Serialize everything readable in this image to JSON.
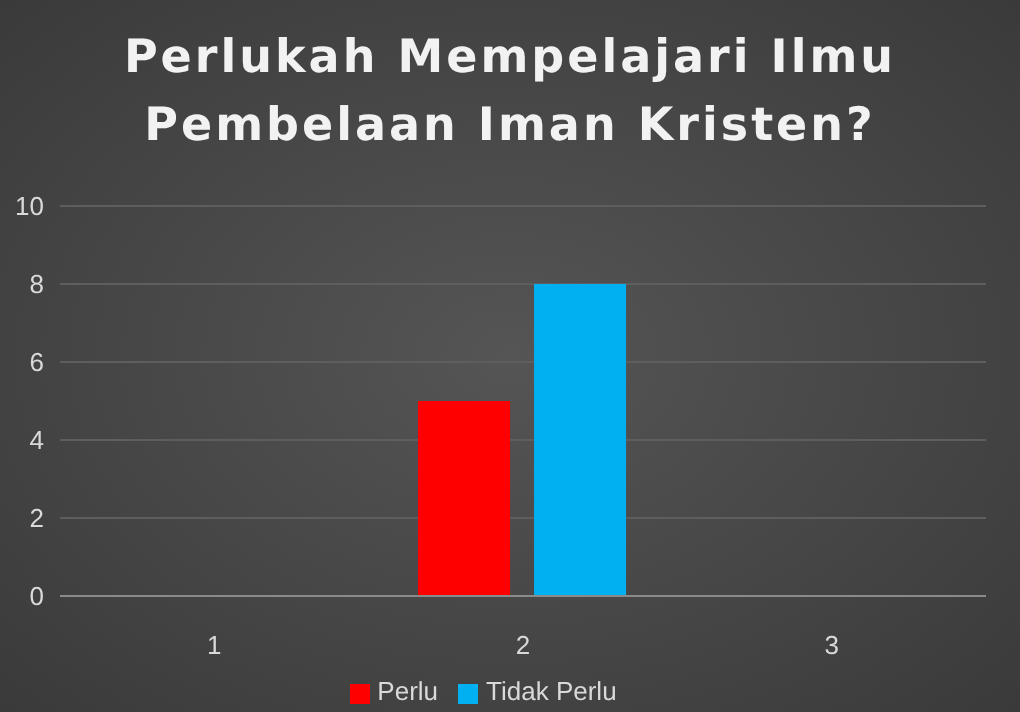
{
  "chart_data": {
    "type": "bar",
    "title": "Perlukah Mempelajari Ilmu Pembelaan Iman Kristen?",
    "categories": [
      "1",
      "2",
      "3"
    ],
    "series": [
      {
        "name": "Perlu",
        "color": "#ff0000",
        "values": [
          null,
          5,
          null
        ]
      },
      {
        "name": "Tidak Perlu",
        "color": "#00b0f0",
        "values": [
          null,
          8,
          null
        ]
      }
    ],
    "ylim": [
      0,
      10
    ],
    "yticks": [
      0,
      2,
      4,
      6,
      8,
      10
    ],
    "grid": "y",
    "legend": "bottom"
  }
}
